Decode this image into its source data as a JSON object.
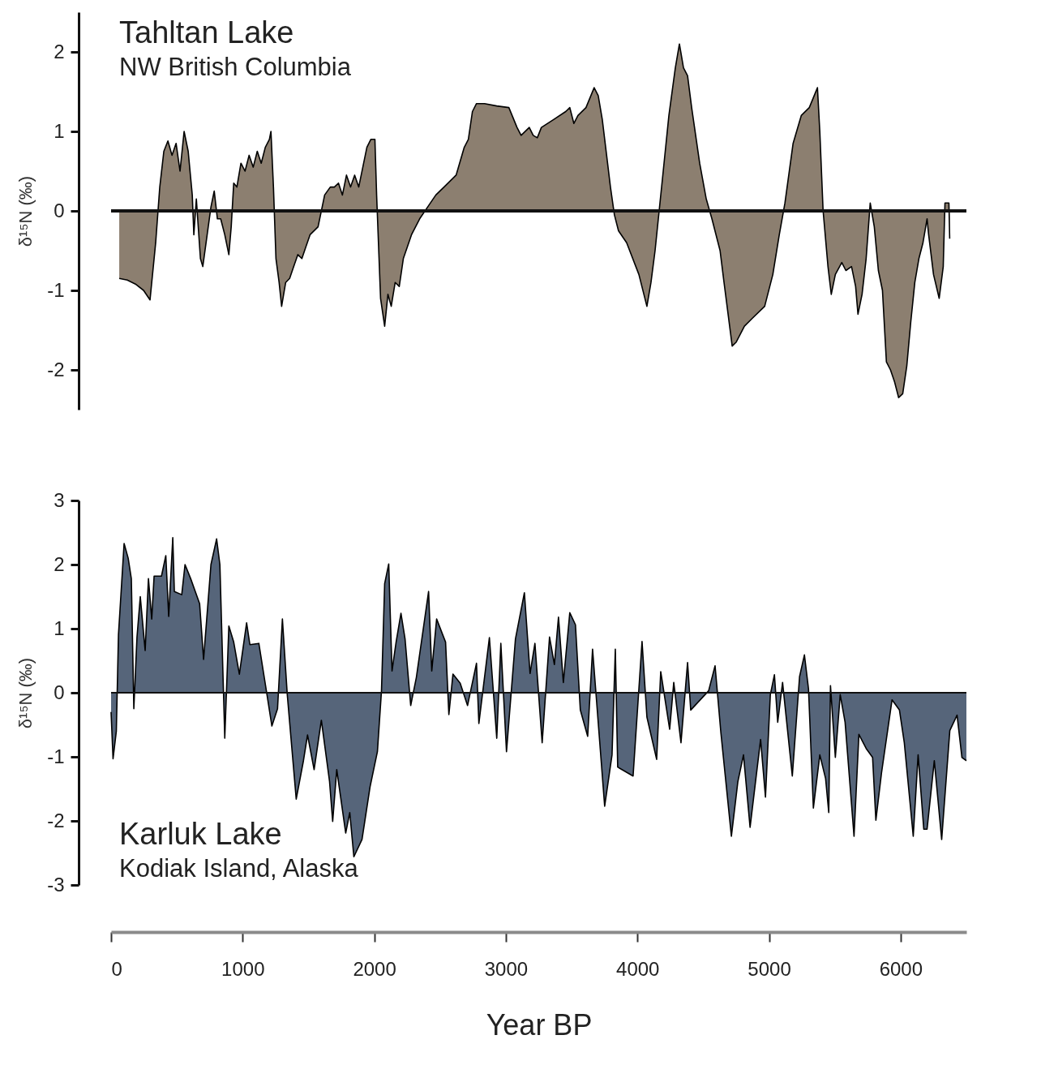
{
  "chart_data": [
    {
      "type": "area",
      "title": "Tahltan Lake",
      "subtitle": "NW British Columbia",
      "ylabel": "δ¹⁵N (‰)",
      "xlim": [
        0,
        6500
      ],
      "ylim": [
        -2.5,
        2.5
      ],
      "yticks": [
        -2,
        -1,
        0,
        1,
        2
      ],
      "tick_labels": "y",
      "grid": false,
      "legend": false,
      "ref_lines": [
        {
          "axis": "y",
          "value": 0,
          "label": null,
          "color": "#111111"
        }
      ],
      "series": [
        {
          "color": "#8c7f70",
          "x": [
            62,
            123,
            185,
            247,
            296,
            339,
            370,
            401,
            432,
            463,
            494,
            524,
            555,
            586,
            617,
            629,
            648,
            679,
            697,
            722,
            759,
            784,
            808,
            833,
            864,
            895,
            913,
            932,
            956,
            987,
            1018,
            1049,
            1080,
            1111,
            1141,
            1172,
            1203,
            1215,
            1234,
            1253,
            1277,
            1296,
            1327,
            1357,
            1388,
            1419,
            1450,
            1481,
            1512,
            1573,
            1623,
            1666,
            1697,
            1728,
            1758,
            1789,
            1820,
            1851,
            1882,
            1913,
            1944,
            1974,
            2005,
            2018,
            2048,
            2079,
            2104,
            2129,
            2159,
            2190,
            2221,
            2283,
            2345,
            2406,
            2468,
            2530,
            2622,
            2684,
            2715,
            2746,
            2777,
            2838,
            2931,
            3023,
            3085,
            3116,
            3178,
            3208,
            3239,
            3270,
            3363,
            3455,
            3486,
            3517,
            3548,
            3609,
            3671,
            3702,
            3733,
            3795,
            3825,
            3856,
            3918,
            4011,
            4072,
            4103,
            4134,
            4165,
            4196,
            4239,
            4288,
            4319,
            4350,
            4381,
            4412,
            4473,
            4523,
            4566,
            4628,
            4658,
            4720,
            4751,
            4813,
            4874,
            4967,
            5029,
            5078,
            5121,
            5183,
            5245,
            5306,
            5368,
            5386,
            5411,
            5448,
            5473,
            5504,
            5553,
            5584,
            5627,
            5658,
            5676,
            5707,
            5738,
            5769,
            5800,
            5831,
            5862,
            5892,
            5923,
            5954,
            5985,
            6016,
            6047,
            6077,
            6108,
            6139,
            6170,
            6201,
            6213,
            6250,
            6293,
            6324,
            6337,
            6367,
            6373
          ],
          "values": [
            -0.85,
            -0.87,
            -0.92,
            -1.0,
            -1.12,
            -0.4,
            0.3,
            0.75,
            0.88,
            0.7,
            0.85,
            0.5,
            1.0,
            0.75,
            0.2,
            -0.3,
            0.15,
            -0.6,
            -0.7,
            -0.4,
            0.05,
            0.25,
            -0.1,
            -0.1,
            -0.3,
            -0.55,
            -0.2,
            0.35,
            0.3,
            0.6,
            0.5,
            0.7,
            0.55,
            0.75,
            0.6,
            0.8,
            0.9,
            1.0,
            0.3,
            -0.6,
            -0.9,
            -1.2,
            -0.9,
            -0.85,
            -0.7,
            -0.55,
            -0.6,
            -0.45,
            -0.3,
            -0.2,
            0.2,
            0.3,
            0.3,
            0.35,
            0.2,
            0.45,
            0.3,
            0.45,
            0.3,
            0.55,
            0.8,
            0.9,
            0.9,
            0.2,
            -1.1,
            -1.45,
            -1.05,
            -1.2,
            -0.9,
            -0.95,
            -0.6,
            -0.3,
            -0.1,
            0.05,
            0.2,
            0.3,
            0.45,
            0.8,
            0.9,
            1.25,
            1.35,
            1.35,
            1.32,
            1.3,
            1.05,
            0.95,
            1.05,
            0.95,
            0.92,
            1.05,
            1.15,
            1.25,
            1.3,
            1.1,
            1.2,
            1.3,
            1.55,
            1.45,
            1.15,
            0.3,
            -0.05,
            -0.25,
            -0.4,
            -0.8,
            -1.2,
            -0.9,
            -0.5,
            0.0,
            0.5,
            1.2,
            1.8,
            2.1,
            1.8,
            1.7,
            1.3,
            0.6,
            0.15,
            -0.1,
            -0.5,
            -0.9,
            -1.7,
            -1.65,
            -1.45,
            -1.35,
            -1.2,
            -0.8,
            -0.3,
            0.1,
            0.85,
            1.2,
            1.3,
            1.55,
            1.0,
            0.0,
            -0.7,
            -1.05,
            -0.8,
            -0.65,
            -0.75,
            -0.7,
            -0.95,
            -1.3,
            -1.05,
            -0.6,
            0.1,
            -0.2,
            -0.75,
            -1.0,
            -1.9,
            -2.0,
            -2.15,
            -2.35,
            -2.3,
            -1.95,
            -1.4,
            -0.9,
            -0.6,
            -0.4,
            -0.1,
            -0.3,
            -0.8,
            -1.1,
            -0.7,
            0.1,
            0.1,
            -0.35
          ]
        }
      ]
    },
    {
      "type": "area",
      "title": "Karluk Lake",
      "subtitle": "Kodiak Island, Alaska",
      "ylabel": "δ¹⁵N (‰)",
      "xlabel": "Year BP",
      "xlim": [
        0,
        6500
      ],
      "xticks": [
        0,
        1000,
        2000,
        3000,
        4000,
        5000,
        6000
      ],
      "ylim": [
        -3,
        3
      ],
      "yticks": [
        -3,
        -2,
        -1,
        0,
        1,
        2,
        3
      ],
      "grid": false,
      "legend": false,
      "ref_lines": [
        {
          "axis": "y",
          "value": 0,
          "label": null,
          "color": "#111111"
        }
      ],
      "series": [
        {
          "color": "#56657a",
          "x": [
            0,
            15,
            40,
            56,
            99,
            130,
            154,
            173,
            197,
            222,
            259,
            284,
            309,
            327,
            383,
            416,
            438,
            469,
            481,
            537,
            562,
            605,
            673,
            703,
            759,
            802,
            827,
            864,
            895,
            932,
            975,
            1030,
            1055,
            1123,
            1178,
            1222,
            1265,
            1302,
            1339,
            1407,
            1462,
            1493,
            1543,
            1598,
            1660,
            1684,
            1715,
            1783,
            1814,
            1845,
            1907,
            1968,
            2024,
            2055,
            2079,
            2110,
            2135,
            2166,
            2203,
            2234,
            2277,
            2320,
            2413,
            2437,
            2474,
            2542,
            2567,
            2598,
            2653,
            2709,
            2777,
            2795,
            2875,
            2931,
            2962,
            3005,
            3073,
            3141,
            3184,
            3221,
            3276,
            3332,
            3369,
            3400,
            3437,
            3486,
            3529,
            3566,
            3622,
            3659,
            3751,
            3807,
            3832,
            3850,
            3967,
            4035,
            4072,
            4146,
            4177,
            4245,
            4276,
            4331,
            4381,
            4405,
            4541,
            4590,
            4634,
            4714,
            4763,
            4806,
            4856,
            4936,
            4973,
            5010,
            5041,
            5066,
            5103,
            5177,
            5232,
            5269,
            5300,
            5337,
            5386,
            5430,
            5454,
            5467,
            5504,
            5541,
            5578,
            5646,
            5683,
            5738,
            5787,
            5812,
            5855,
            5935,
            5991,
            6028,
            6096,
            6133,
            6176,
            6201,
            6256,
            6312,
            6374,
            6429,
            6466,
            6500
          ],
          "values": [
            -0.3,
            -1.03,
            -0.6,
            0.9,
            2.33,
            2.1,
            1.78,
            -0.25,
            0.87,
            1.5,
            0.66,
            1.78,
            1.15,
            1.82,
            1.82,
            2.14,
            1.19,
            2.42,
            1.58,
            1.53,
            2.0,
            1.78,
            1.39,
            0.52,
            2.0,
            2.4,
            2.0,
            -0.71,
            1.04,
            0.79,
            0.29,
            1.09,
            0.75,
            0.77,
            0.06,
            -0.52,
            -0.25,
            1.15,
            -0.03,
            -1.66,
            -1.06,
            -0.66,
            -1.2,
            -0.43,
            -1.38,
            -2.01,
            -1.2,
            -2.19,
            -1.87,
            -2.56,
            -2.29,
            -1.47,
            -0.92,
            0.03,
            1.7,
            2.01,
            0.34,
            0.79,
            1.24,
            0.84,
            -0.2,
            0.24,
            1.58,
            0.34,
            1.15,
            0.79,
            -0.34,
            0.29,
            0.15,
            -0.2,
            0.46,
            -0.48,
            0.86,
            -0.71,
            0.77,
            -0.92,
            0.84,
            1.56,
            0.3,
            0.77,
            -0.78,
            0.87,
            0.44,
            1.18,
            0.16,
            1.25,
            1.06,
            -0.27,
            -0.68,
            0.68,
            -1.77,
            -0.97,
            0.68,
            -1.16,
            -1.3,
            0.8,
            -0.38,
            -1.04,
            0.33,
            -0.57,
            0.16,
            -0.78,
            0.47,
            -0.27,
            0.03,
            0.42,
            -0.62,
            -2.24,
            -1.39,
            -0.97,
            -2.1,
            -0.73,
            -1.63,
            -0.03,
            0.28,
            -0.46,
            0.16,
            -1.3,
            0.25,
            0.59,
            0.06,
            -1.8,
            -0.97,
            -1.34,
            -1.87,
            0.11,
            -1.01,
            -0.03,
            -0.46,
            -2.24,
            -0.65,
            -0.87,
            -1.01,
            -1.99,
            -1.25,
            -0.11,
            -0.27,
            -0.78,
            -2.24,
            -0.97,
            -2.13,
            -2.13,
            -1.06,
            -2.29,
            -0.59,
            -0.35,
            -1.01,
            -1.06
          ]
        }
      ]
    }
  ]
}
